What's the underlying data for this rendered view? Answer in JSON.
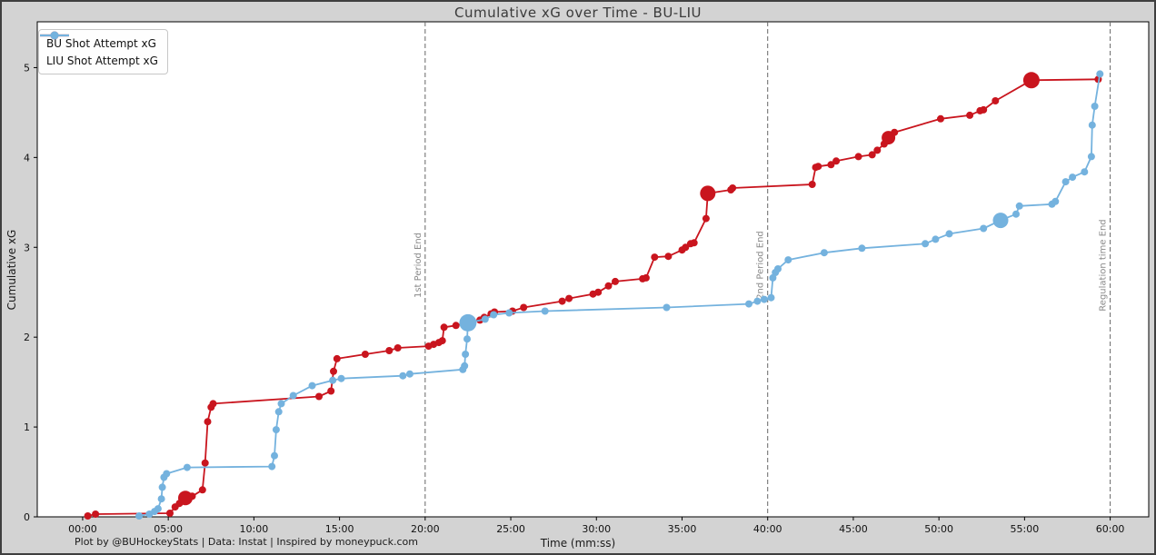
{
  "chart_data": {
    "type": "line",
    "title": "Cumulative xG over Time - BU-LIU",
    "xlabel": "Time (mm:ss)",
    "ylabel": "Cumulative xG",
    "footnote": "Plot by @BUHockeyStats | Data: Instat | Inspired by moneypuck.com",
    "grid": false,
    "legend_position": "upper-left",
    "background_color": "#d3d3d3",
    "plot_background_color": "#ffffff",
    "annotation_color": "#8a8a8a",
    "xlim_minutes": [
      -2.65,
      62.25
    ],
    "ylim": [
      0,
      5.51
    ],
    "x_ticks": [
      {
        "t": 0,
        "label": "00:00"
      },
      {
        "t": 5,
        "label": "05:00"
      },
      {
        "t": 10,
        "label": "10:00"
      },
      {
        "t": 15,
        "label": "15:00"
      },
      {
        "t": 20,
        "label": "20:00"
      },
      {
        "t": 25,
        "label": "25:00"
      },
      {
        "t": 30,
        "label": "30:00"
      },
      {
        "t": 35,
        "label": "35:00"
      },
      {
        "t": 40,
        "label": "40:00"
      },
      {
        "t": 45,
        "label": "45:00"
      },
      {
        "t": 50,
        "label": "50:00"
      },
      {
        "t": 55,
        "label": "55:00"
      },
      {
        "t": 60,
        "label": "60:00"
      }
    ],
    "y_ticks": [
      0,
      1,
      2,
      3,
      4,
      5
    ],
    "annotations": [
      {
        "t": 20,
        "label": "1st Period End"
      },
      {
        "t": 40,
        "label": "2nd Period End"
      },
      {
        "t": 60,
        "label": "Regulation time End"
      }
    ],
    "point_format": "[time_minutes, cumulative_xG, big_goal_marker_radius_px(optional)]",
    "series": [
      {
        "name": "BU Shot Attempt xG",
        "color": "#c9151e",
        "points": [
          [
            0.3,
            0.01
          ],
          [
            0.75,
            0.03
          ],
          [
            5.1,
            0.04
          ],
          [
            5.4,
            0.11
          ],
          [
            5.65,
            0.15
          ],
          [
            6.0,
            0.21,
            8
          ],
          [
            6.4,
            0.23
          ],
          [
            7.0,
            0.3
          ],
          [
            7.15,
            0.6
          ],
          [
            7.3,
            1.06
          ],
          [
            7.5,
            1.22
          ],
          [
            7.62,
            1.26
          ],
          [
            13.8,
            1.34
          ],
          [
            14.5,
            1.4
          ],
          [
            14.65,
            1.62
          ],
          [
            14.85,
            1.76
          ],
          [
            16.5,
            1.81
          ],
          [
            17.9,
            1.85
          ],
          [
            18.4,
            1.88
          ],
          [
            20.2,
            1.9
          ],
          [
            20.5,
            1.92
          ],
          [
            20.8,
            1.94
          ],
          [
            21.0,
            1.96
          ],
          [
            21.1,
            2.11
          ],
          [
            21.8,
            2.13
          ],
          [
            22.4,
            2.16
          ],
          [
            23.2,
            2.19
          ],
          [
            23.45,
            2.22
          ],
          [
            23.85,
            2.26
          ],
          [
            24.05,
            2.28
          ],
          [
            25.1,
            2.29
          ],
          [
            25.75,
            2.33
          ],
          [
            28.0,
            2.4
          ],
          [
            28.4,
            2.43
          ],
          [
            29.8,
            2.48
          ],
          [
            30.1,
            2.5
          ],
          [
            30.7,
            2.57
          ],
          [
            31.1,
            2.62
          ],
          [
            32.7,
            2.65
          ],
          [
            32.9,
            2.66
          ],
          [
            33.4,
            2.89
          ],
          [
            34.2,
            2.9
          ],
          [
            35.0,
            2.97
          ],
          [
            35.2,
            3.0
          ],
          [
            35.5,
            3.04
          ],
          [
            35.7,
            3.05
          ],
          [
            36.4,
            3.32
          ],
          [
            36.5,
            3.6,
            8.5
          ],
          [
            37.85,
            3.64
          ],
          [
            37.95,
            3.66
          ],
          [
            42.6,
            3.7
          ],
          [
            42.8,
            3.89
          ],
          [
            42.95,
            3.9
          ],
          [
            43.7,
            3.92
          ],
          [
            44.0,
            3.96
          ],
          [
            45.3,
            4.01
          ],
          [
            46.1,
            4.03
          ],
          [
            46.4,
            4.08
          ],
          [
            46.8,
            4.15
          ],
          [
            47.05,
            4.22,
            7.5
          ],
          [
            47.4,
            4.28
          ],
          [
            50.1,
            4.43
          ],
          [
            51.8,
            4.47
          ],
          [
            52.4,
            4.52
          ],
          [
            52.6,
            4.53
          ],
          [
            53.3,
            4.63
          ],
          [
            55.4,
            4.86,
            9
          ],
          [
            59.3,
            4.87
          ]
        ]
      },
      {
        "name": "LIU Shot Attempt xG",
        "color": "#74b2de",
        "points": [
          [
            3.3,
            0.01
          ],
          [
            3.9,
            0.03
          ],
          [
            4.2,
            0.06
          ],
          [
            4.4,
            0.09
          ],
          [
            4.6,
            0.2
          ],
          [
            4.65,
            0.33
          ],
          [
            4.75,
            0.44
          ],
          [
            4.9,
            0.48
          ],
          [
            6.1,
            0.55
          ],
          [
            11.05,
            0.56
          ],
          [
            11.2,
            0.68
          ],
          [
            11.3,
            0.97
          ],
          [
            11.45,
            1.17
          ],
          [
            11.6,
            1.26
          ],
          [
            12.3,
            1.35
          ],
          [
            13.4,
            1.46
          ],
          [
            14.6,
            1.52
          ],
          [
            15.1,
            1.54
          ],
          [
            18.7,
            1.57
          ],
          [
            19.1,
            1.59
          ],
          [
            22.2,
            1.64
          ],
          [
            22.3,
            1.68
          ],
          [
            22.35,
            1.81
          ],
          [
            22.45,
            1.98
          ],
          [
            22.5,
            2.16,
            9.5
          ],
          [
            23.5,
            2.2
          ],
          [
            24.0,
            2.25
          ],
          [
            24.9,
            2.27
          ],
          [
            27.0,
            2.29
          ],
          [
            34.1,
            2.33
          ],
          [
            38.9,
            2.37
          ],
          [
            39.4,
            2.4
          ],
          [
            39.8,
            2.42
          ],
          [
            40.2,
            2.44
          ],
          [
            40.3,
            2.66
          ],
          [
            40.45,
            2.72
          ],
          [
            40.6,
            2.76
          ],
          [
            41.2,
            2.86
          ],
          [
            43.3,
            2.94
          ],
          [
            45.5,
            2.99
          ],
          [
            49.2,
            3.04
          ],
          [
            49.8,
            3.09
          ],
          [
            50.6,
            3.15
          ],
          [
            52.6,
            3.21
          ],
          [
            53.6,
            3.3,
            8.5
          ],
          [
            54.5,
            3.37
          ],
          [
            54.7,
            3.46
          ],
          [
            56.6,
            3.48
          ],
          [
            56.8,
            3.51
          ],
          [
            57.4,
            3.73
          ],
          [
            57.8,
            3.78
          ],
          [
            58.5,
            3.84
          ],
          [
            58.9,
            4.01
          ],
          [
            58.95,
            4.36
          ],
          [
            59.1,
            4.57
          ],
          [
            59.4,
            4.93
          ]
        ]
      }
    ]
  }
}
